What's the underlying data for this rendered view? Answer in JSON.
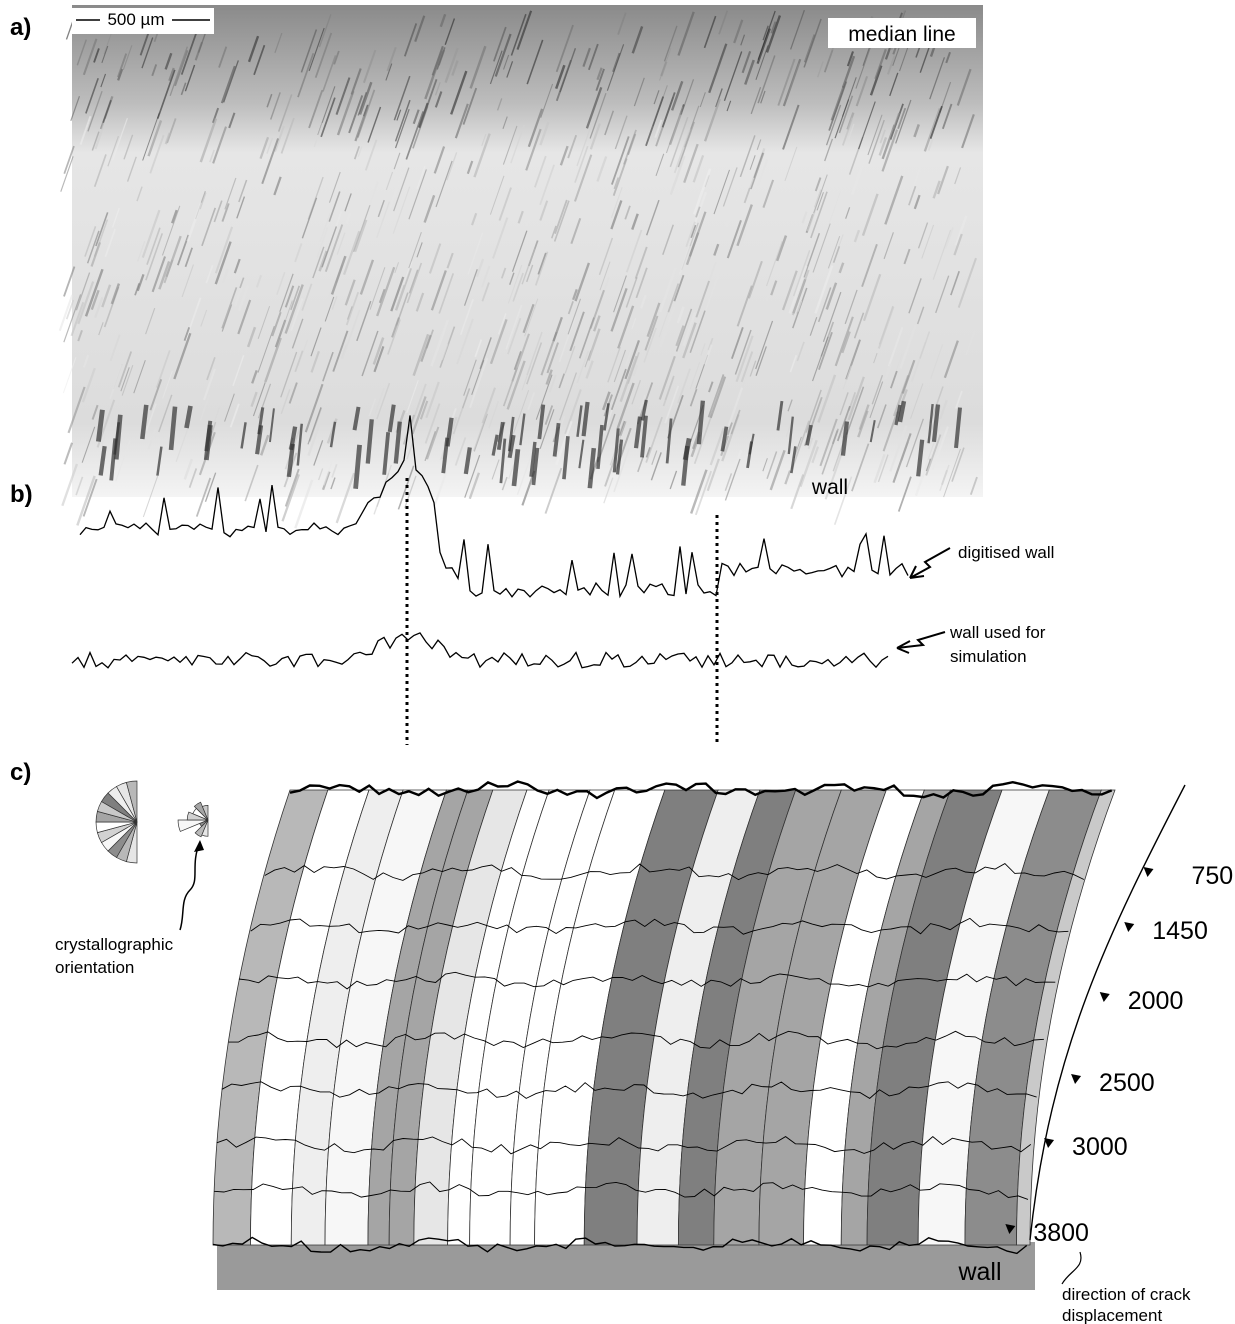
{
  "panel_a": {
    "label": "a)",
    "scale_bar": "500 µm",
    "median_line": "median line",
    "wall": "wall"
  },
  "panel_b": {
    "label": "b)",
    "digitised_wall": "digitised wall",
    "simulation_wall": [
      "wall used for",
      "simulation"
    ]
  },
  "panel_c": {
    "label": "c)",
    "orientation": [
      "crystallographic",
      "orientation"
    ],
    "steps": [
      750,
      1450,
      2000,
      2500,
      3000,
      3800
    ],
    "wall": "wall",
    "direction": [
      "direction of crack",
      "displacement"
    ]
  }
}
